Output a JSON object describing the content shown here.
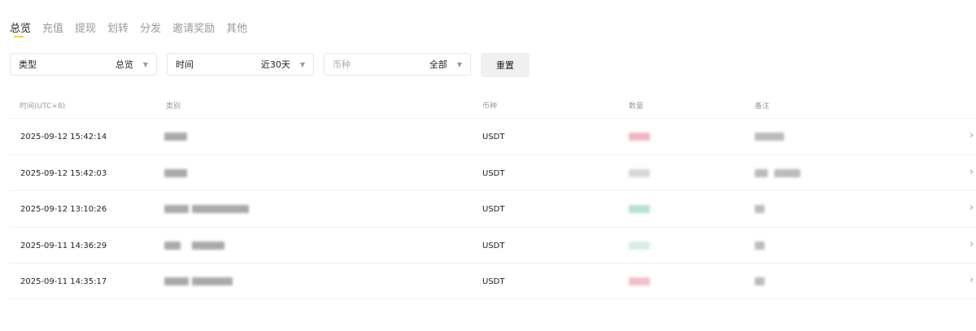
{
  "tabs": [
    {
      "label": "总览",
      "active": true
    },
    {
      "label": "充值"
    },
    {
      "label": "提现"
    },
    {
      "label": "划转"
    },
    {
      "label": "分发"
    },
    {
      "label": "邀请奖励"
    },
    {
      "label": "其他"
    }
  ],
  "filters": {
    "type": {
      "label": "类型",
      "value": "总览"
    },
    "time": {
      "label": "时间",
      "value": "近30天"
    },
    "currency": {
      "label": "币种",
      "value": "全部"
    },
    "reset_label": "重置"
  },
  "columns": [
    "时间(UTC+8)",
    "类别",
    "币种",
    "数量",
    "备注"
  ],
  "rows": [
    {
      "time": "2025-09-12 15:42:14",
      "currency": "USDT",
      "amount_color": "#f4b6c0"
    },
    {
      "time": "2025-09-12 15:42:03",
      "currency": "USDT",
      "amount_color": "#d8d8d8"
    },
    {
      "time": "2025-09-12 13:10:26",
      "currency": "USDT",
      "amount_color": "#b5e3cf"
    },
    {
      "time": "2025-09-11 14:36:29",
      "currency": "USDT",
      "amount_color": "#d5efe3"
    },
    {
      "time": "2025-09-11 14:35:17",
      "currency": "USDT",
      "amount_color": "#f4c0c8"
    }
  ]
}
